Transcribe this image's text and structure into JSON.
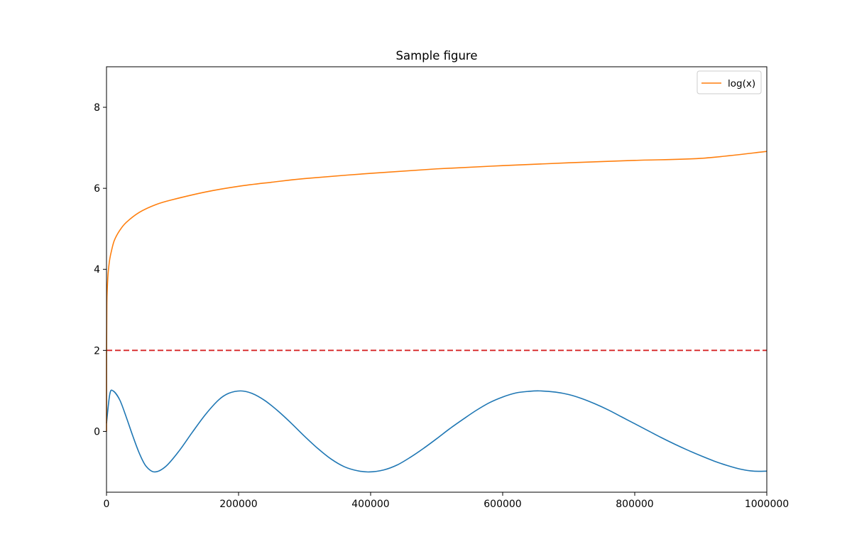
{
  "chart_data": {
    "type": "line",
    "title": "Sample figure",
    "xlabel": "",
    "ylabel": "",
    "xlim": [
      0,
      1000000
    ],
    "ylim": [
      -1.5,
      9
    ],
    "x_ticks": [
      {
        "value": 0,
        "label": "0"
      },
      {
        "value": 200000,
        "label": "200000"
      },
      {
        "value": 400000,
        "label": "400000"
      },
      {
        "value": 600000,
        "label": "600000"
      },
      {
        "value": 800000,
        "label": "800000"
      },
      {
        "value": 1000000,
        "label": "1000000"
      }
    ],
    "y_ticks": [
      {
        "value": 0,
        "label": "0"
      },
      {
        "value": 2,
        "label": "2"
      },
      {
        "value": 4,
        "label": "4"
      },
      {
        "value": 6,
        "label": "6"
      },
      {
        "value": 8,
        "label": "8"
      }
    ],
    "grid": false,
    "legend_position": "top-right",
    "series": [
      {
        "name": "",
        "color": "#1f77b4",
        "style": "solid",
        "in_legend": false,
        "x": [
          1,
          5000,
          10000,
          20000,
          30000,
          40000,
          50000,
          60000,
          73000,
          90000,
          110000,
          130000,
          150000,
          170000,
          185000,
          203000,
          220000,
          240000,
          260000,
          280000,
          300000,
          320000,
          340000,
          360000,
          380000,
          398000,
          420000,
          440000,
          460000,
          480000,
          500000,
          520000,
          540000,
          560000,
          580000,
          600000,
          620000,
          640000,
          656000,
          680000,
          700000,
          720000,
          740000,
          760000,
          780000,
          800000,
          820000,
          840000,
          860000,
          880000,
          900000,
          920000,
          940000,
          960000,
          980000,
          1000000
        ],
        "values": [
          0.2,
          0.92,
          1.0,
          0.78,
          0.35,
          -0.12,
          -0.55,
          -0.86,
          -1.0,
          -0.86,
          -0.48,
          -0.02,
          0.42,
          0.78,
          0.94,
          1.0,
          0.94,
          0.76,
          0.5,
          0.2,
          -0.12,
          -0.42,
          -0.68,
          -0.87,
          -0.97,
          -1.0,
          -0.95,
          -0.83,
          -0.64,
          -0.42,
          -0.18,
          0.07,
          0.3,
          0.52,
          0.71,
          0.85,
          0.95,
          0.99,
          1.0,
          0.97,
          0.91,
          0.81,
          0.68,
          0.53,
          0.36,
          0.19,
          0.02,
          -0.15,
          -0.31,
          -0.46,
          -0.6,
          -0.73,
          -0.84,
          -0.93,
          -0.98,
          -0.98
        ]
      },
      {
        "name": "",
        "color": "#d62728",
        "style": "dashed",
        "in_legend": false,
        "x": [
          0,
          1000000
        ],
        "values": [
          2,
          2
        ]
      },
      {
        "name": "log(x)",
        "color": "#ff7f0e",
        "style": "solid",
        "in_legend": true,
        "x": [
          1,
          100,
          500,
          1000,
          2000,
          3000,
          5000,
          8000,
          12000,
          20000,
          30000,
          50000,
          75000,
          100000,
          150000,
          200000,
          250000,
          300000,
          400000,
          500000,
          600000,
          700000,
          800000,
          900000,
          1000000
        ],
        "values": [
          0.0,
          2.0,
          3.11,
          3.45,
          3.8,
          4.0,
          4.26,
          4.49,
          4.72,
          4.96,
          5.16,
          5.41,
          5.6,
          5.72,
          5.91,
          6.05,
          6.15,
          6.24,
          6.37,
          6.48,
          6.56,
          6.63,
          6.69,
          6.74,
          6.91
        ]
      }
    ]
  }
}
